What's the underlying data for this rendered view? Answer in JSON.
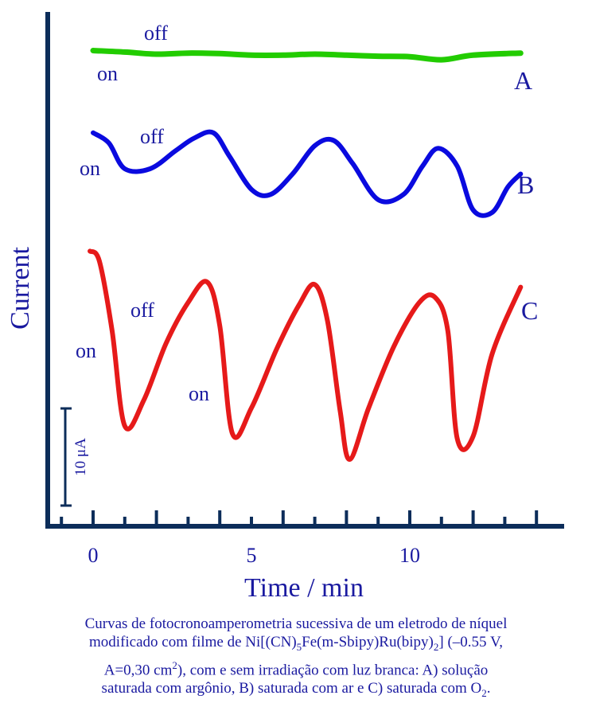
{
  "chart_data": {
    "type": "line",
    "ylabel": "Current",
    "xlabel": "Time / min",
    "x_ticks": [
      0,
      5,
      10
    ],
    "xlim": [
      -1.1,
      14.9
    ],
    "ylim": [
      0,
      100
    ],
    "scale_bar": {
      "label": "10 μA",
      "value": 10
    },
    "series": [
      {
        "name": "A",
        "color": "#22cc00",
        "x": [
          0,
          1,
          2,
          3,
          4,
          5,
          6,
          7,
          8,
          9,
          10,
          11,
          12,
          13.5
        ],
        "y": [
          92.5,
          92.2,
          91.8,
          92.0,
          91.9,
          91.6,
          91.6,
          91.8,
          91.6,
          91.4,
          91.3,
          90.7,
          91.6,
          92.0
        ],
        "annotations": [
          "off",
          "on"
        ]
      },
      {
        "name": "B",
        "color": "#0a0adf",
        "x": [
          0,
          0.5,
          1,
          1.8,
          2.6,
          3.2,
          3.8,
          4.3,
          5.0,
          5.6,
          6.3,
          7.0,
          7.6,
          8.2,
          9.0,
          9.8,
          10.4,
          10.9,
          11.5,
          12.0,
          12.6,
          13.1,
          13.5
        ],
        "y": [
          76.5,
          74.5,
          69.5,
          69.5,
          73.0,
          75.5,
          76.5,
          72.0,
          65.5,
          64.5,
          68.5,
          74.0,
          75.0,
          70.5,
          63.5,
          64.5,
          70.0,
          73.5,
          70.0,
          61.5,
          61.0,
          66.0,
          68.5
        ],
        "annotations": [
          "off",
          "on"
        ]
      },
      {
        "name": "C",
        "color": "#e61a1a",
        "x": [
          -0.1,
          0.2,
          0.6,
          1.0,
          1.6,
          2.3,
          3.0,
          3.6,
          4.0,
          4.4,
          5.0,
          5.8,
          6.5,
          7.0,
          7.4,
          7.8,
          8.1,
          8.7,
          9.5,
          10.3,
          10.8,
          11.2,
          11.5,
          12.0,
          12.6,
          13.5
        ],
        "y": [
          53.5,
          51.5,
          38.0,
          19.5,
          24.5,
          35.5,
          43.5,
          47.5,
          39.0,
          18.0,
          23.0,
          34.5,
          43.0,
          47.0,
          40.0,
          22.5,
          13.0,
          23.0,
          35.0,
          43.5,
          44.5,
          38.0,
          17.0,
          17.5,
          33.5,
          46.5
        ],
        "annotations": [
          "off",
          "on",
          "on"
        ]
      }
    ]
  },
  "labels": {
    "ylabel": "Current",
    "xlabel": "Time / min",
    "ticks": [
      "0",
      "5",
      "10"
    ],
    "scale": "10 μA",
    "A": "A",
    "B": "B",
    "C": "C",
    "off": "off",
    "on": "on"
  },
  "caption": {
    "line1": "Curvas de fotocronoamperometria sucessiva de um eletrodo de níquel",
    "line2a": "modificado com filme de Ni[(CN)",
    "line2b": "5",
    "line2c": "Fe(m-Sbipy)Ru(bipy)",
    "line2d": "2",
    "line2e": "] (–0.55 V,",
    "line3a": "A=0,30 cm",
    "line3b": "2",
    "line3c": "), com e sem irradiação  com luz branca:  A) solução",
    "line4a": "saturada com argônio, B) saturada com ar e C) saturada com O",
    "line4b": "2",
    "line4c": "."
  },
  "colors": {
    "axis": "#0c2d5a",
    "text": "#1a1aa0",
    "A": "#22cc00",
    "B": "#0a0adf",
    "C": "#e61a1a"
  }
}
